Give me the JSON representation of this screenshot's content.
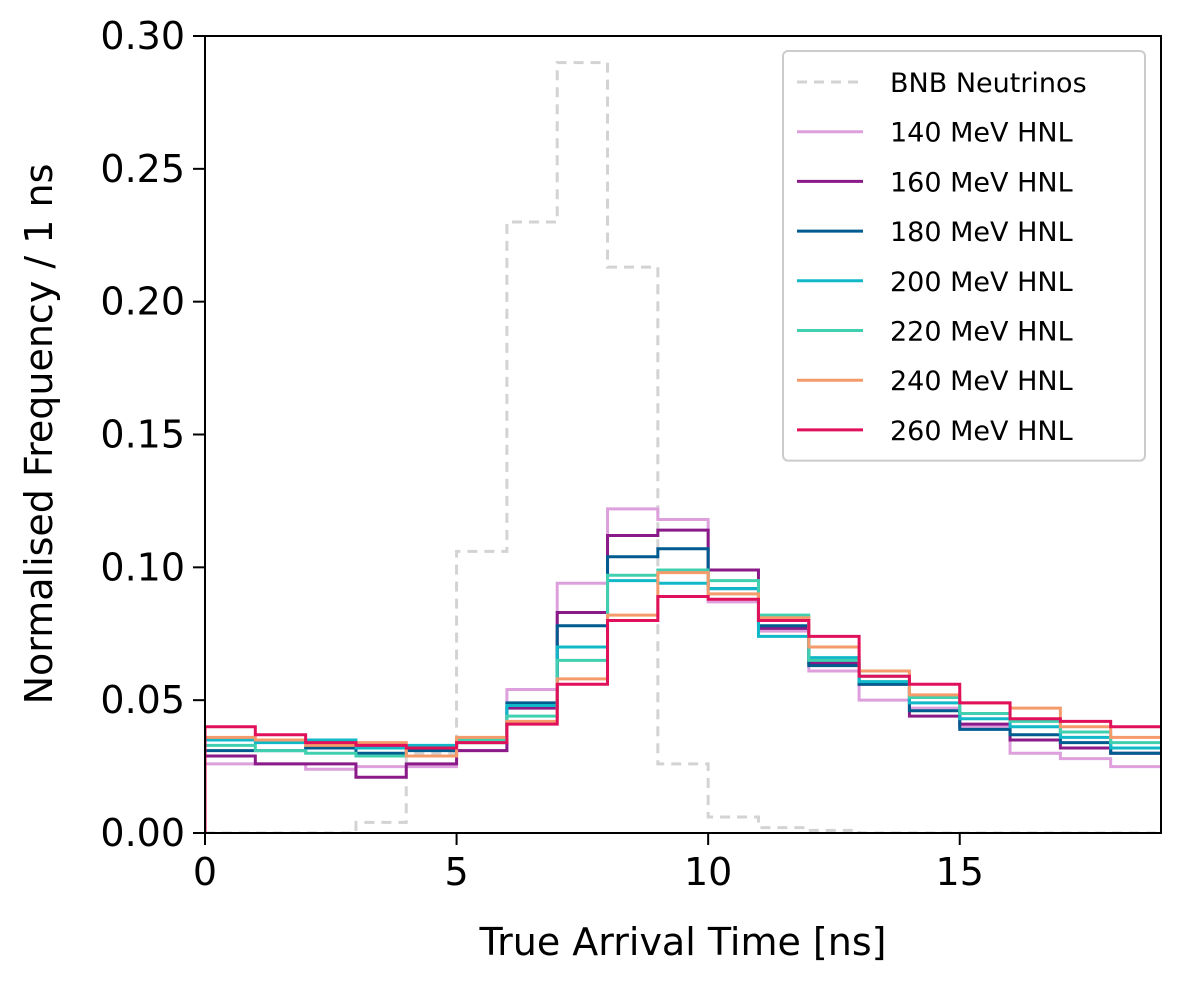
{
  "chart_data": {
    "type": "line",
    "xlabel": "True Arrival Time [ns]",
    "ylabel": "Normalised Frequency / 1 ns",
    "xlim": [
      0,
      19
    ],
    "ylim": [
      0,
      0.3
    ],
    "x_ticks": [
      0,
      5,
      10,
      15
    ],
    "x_tick_labels": [
      "0",
      "5",
      "10",
      "15"
    ],
    "y_ticks": [
      0,
      0.05,
      0.1,
      0.15,
      0.2,
      0.25,
      0.3
    ],
    "y_tick_labels": [
      "0.00",
      "0.05",
      "0.10",
      "0.15",
      "0.20",
      "0.25",
      "0.30"
    ],
    "grid": false,
    "legend_position": "top-right",
    "bin_edges": [
      0,
      1,
      2,
      3,
      4,
      5,
      6,
      7,
      8,
      9,
      10,
      11,
      12,
      13,
      14,
      15,
      16,
      17,
      18,
      19
    ],
    "series": [
      {
        "name": "BNB Neutrinos",
        "color": "#d3d3d3",
        "dashed": true,
        "values": [
          0.0,
          0.0,
          0.0,
          0.004,
          0.03,
          0.106,
          0.23,
          0.29,
          0.213,
          0.026,
          0.006,
          0.002,
          0.001,
          0.0,
          0.0,
          0.0,
          0.0,
          0.0,
          0.0
        ]
      },
      {
        "name": "140 MeV HNL",
        "color": "#dda0dd",
        "dashed": false,
        "values": [
          0.026,
          0.026,
          0.024,
          0.025,
          0.025,
          0.031,
          0.054,
          0.094,
          0.122,
          0.118,
          0.087,
          0.076,
          0.061,
          0.05,
          0.047,
          0.04,
          0.03,
          0.028,
          0.025
        ]
      },
      {
        "name": "160 MeV HNL",
        "color": "#8b1a89",
        "dashed": false,
        "values": [
          0.029,
          0.026,
          0.026,
          0.021,
          0.026,
          0.031,
          0.047,
          0.083,
          0.112,
          0.114,
          0.099,
          0.077,
          0.064,
          0.056,
          0.044,
          0.041,
          0.035,
          0.032,
          0.03
        ]
      },
      {
        "name": "180 MeV HNL",
        "color": "#005b8f",
        "dashed": false,
        "values": [
          0.031,
          0.031,
          0.032,
          0.03,
          0.031,
          0.034,
          0.049,
          0.078,
          0.104,
          0.107,
          0.092,
          0.078,
          0.063,
          0.056,
          0.046,
          0.039,
          0.037,
          0.034,
          0.03
        ]
      },
      {
        "name": "200 MeV HNL",
        "color": "#10b8c8",
        "dashed": false,
        "values": [
          0.035,
          0.034,
          0.035,
          0.032,
          0.033,
          0.035,
          0.048,
          0.07,
          0.095,
          0.094,
          0.092,
          0.074,
          0.066,
          0.057,
          0.049,
          0.043,
          0.04,
          0.036,
          0.032
        ]
      },
      {
        "name": "220 MeV HNL",
        "color": "#40d0b0",
        "dashed": false,
        "values": [
          0.033,
          0.031,
          0.03,
          0.029,
          0.032,
          0.035,
          0.044,
          0.065,
          0.097,
          0.099,
          0.095,
          0.082,
          0.065,
          0.059,
          0.051,
          0.045,
          0.042,
          0.038,
          0.034
        ]
      },
      {
        "name": "240 MeV HNL",
        "color": "#f59b6b",
        "dashed": false,
        "values": [
          0.036,
          0.035,
          0.033,
          0.034,
          0.029,
          0.036,
          0.042,
          0.058,
          0.082,
          0.098,
          0.09,
          0.081,
          0.07,
          0.061,
          0.052,
          0.049,
          0.047,
          0.04,
          0.036
        ]
      },
      {
        "name": "260 MeV HNL",
        "color": "#e0105a",
        "dashed": false,
        "values": [
          0.04,
          0.037,
          0.034,
          0.033,
          0.032,
          0.034,
          0.041,
          0.056,
          0.08,
          0.089,
          0.088,
          0.08,
          0.074,
          0.059,
          0.056,
          0.049,
          0.043,
          0.042,
          0.04
        ]
      }
    ]
  }
}
